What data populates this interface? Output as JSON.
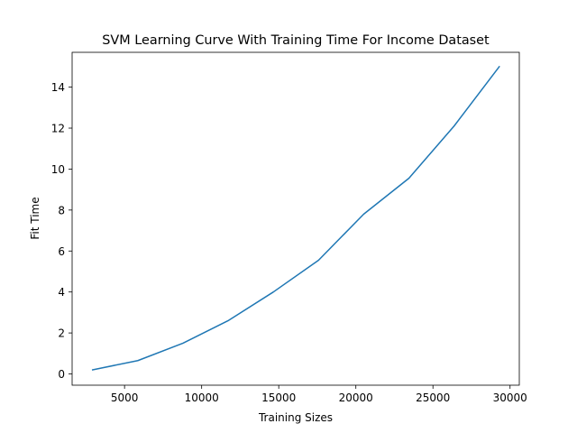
{
  "chart_data": {
    "type": "line",
    "title": "SVM Learning Curve With Training Time For Income Dataset",
    "xlabel": "Training Sizes",
    "ylabel": "Fit Time",
    "xlim": [
      1600,
      30600
    ],
    "ylim": [
      -0.55,
      15.7
    ],
    "xticks": [
      5000,
      10000,
      15000,
      20000,
      25000,
      30000
    ],
    "yticks": [
      0,
      2,
      4,
      6,
      8,
      10,
      12,
      14
    ],
    "grid": false,
    "series": [
      {
        "color": "#1f77b4",
        "x": [
          2930,
          5860,
          8790,
          11720,
          14650,
          17580,
          20510,
          23440,
          26370,
          29300
        ],
        "y": [
          0.2,
          0.65,
          1.5,
          2.6,
          4.0,
          5.55,
          7.8,
          9.55,
          12.1,
          15.0
        ]
      }
    ]
  }
}
